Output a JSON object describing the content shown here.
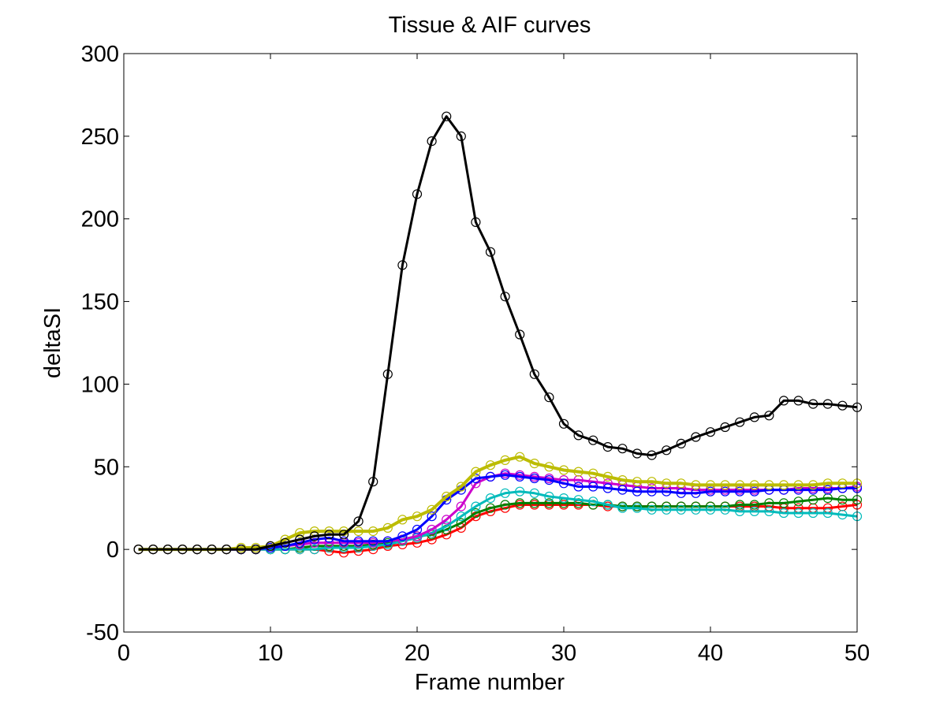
{
  "figure": {
    "background": "#ffffff"
  },
  "chart_data": {
    "type": "line",
    "title": "Tissue & AIF curves",
    "xlabel": "Frame number",
    "ylabel": "deltaSI",
    "xlim": [
      0,
      50
    ],
    "ylim": [
      -50,
      300
    ],
    "xticks": [
      0,
      10,
      20,
      30,
      40,
      50
    ],
    "yticks": [
      -50,
      0,
      50,
      100,
      150,
      200,
      250,
      300
    ],
    "grid": false,
    "legend": "none",
    "marker": "open-circle",
    "x": [
      1,
      2,
      3,
      4,
      5,
      6,
      7,
      8,
      9,
      10,
      11,
      12,
      13,
      14,
      15,
      16,
      17,
      18,
      19,
      20,
      21,
      22,
      23,
      24,
      25,
      26,
      27,
      28,
      29,
      30,
      31,
      32,
      33,
      34,
      35,
      36,
      37,
      38,
      39,
      40,
      41,
      42,
      43,
      44,
      45,
      46,
      47,
      48,
      49,
      50
    ],
    "series": [
      {
        "color": "#000000",
        "stroke_width": 3,
        "values": [
          0,
          0,
          0,
          0,
          0,
          0,
          0,
          0,
          0,
          2,
          4,
          6,
          8,
          9,
          9,
          17,
          41,
          106,
          172,
          215,
          247,
          262,
          250,
          198,
          180,
          153,
          130,
          106,
          92,
          76,
          69,
          66,
          62,
          61,
          58,
          57,
          60,
          64,
          68,
          71,
          74,
          77,
          80,
          81,
          90,
          90,
          88,
          88,
          87,
          86
        ]
      },
      {
        "color": "#bcbc00",
        "stroke_width": 4,
        "values": [
          0,
          0,
          0,
          0,
          0,
          0,
          0,
          1,
          1,
          2,
          6,
          10,
          11,
          11,
          11,
          11,
          11,
          13,
          18,
          20,
          24,
          32,
          38,
          47,
          51,
          54,
          56,
          52,
          50,
          48,
          47,
          46,
          44,
          42,
          41,
          41,
          40,
          40,
          39,
          39,
          39,
          39,
          39,
          39,
          39,
          39,
          39,
          40,
          40,
          40
        ]
      },
      {
        "color": "#0000ff",
        "stroke_width": 3,
        "values": [
          0,
          0,
          0,
          0,
          0,
          0,
          0,
          0,
          0,
          1,
          2,
          4,
          6,
          7,
          5,
          5,
          5,
          5,
          8,
          12,
          20,
          30,
          36,
          43,
          44,
          45,
          44,
          43,
          42,
          40,
          38,
          38,
          37,
          36,
          35,
          35,
          35,
          34,
          34,
          35,
          35,
          35,
          35,
          36,
          36,
          36,
          36,
          36,
          37,
          37
        ]
      },
      {
        "color": "#cc00cc",
        "stroke_width": 3,
        "values": [
          0,
          0,
          0,
          0,
          0,
          0,
          0,
          0,
          0,
          1,
          2,
          3,
          4,
          4,
          4,
          4,
          4,
          5,
          6,
          8,
          12,
          18,
          26,
          40,
          44,
          46,
          45,
          44,
          43,
          42,
          42,
          41,
          40,
          39,
          38,
          37,
          37,
          37,
          36,
          36,
          36,
          36,
          36,
          36,
          36,
          37,
          37,
          37,
          37,
          38
        ]
      },
      {
        "color": "#00bbbb",
        "stroke_width": 3,
        "values": [
          0,
          0,
          0,
          0,
          0,
          0,
          0,
          0,
          0,
          0,
          0,
          0,
          0,
          1,
          1,
          1,
          2,
          3,
          5,
          7,
          10,
          14,
          20,
          26,
          31,
          34,
          35,
          34,
          32,
          31,
          30,
          29,
          27,
          25,
          25,
          24,
          24,
          24,
          24,
          24,
          24,
          23,
          23,
          23,
          22,
          22,
          22,
          22,
          21,
          20
        ]
      },
      {
        "color": "#008000",
        "stroke_width": 3,
        "values": [
          0,
          0,
          0,
          0,
          0,
          0,
          0,
          0,
          0,
          0,
          0,
          1,
          2,
          2,
          2,
          2,
          3,
          4,
          6,
          8,
          9,
          12,
          16,
          22,
          25,
          27,
          28,
          28,
          28,
          28,
          28,
          27,
          27,
          26,
          26,
          26,
          26,
          26,
          26,
          26,
          26,
          27,
          27,
          28,
          28,
          29,
          30,
          31,
          30,
          30
        ]
      },
      {
        "color": "#ff0000",
        "stroke_width": 3,
        "values": [
          0,
          0,
          0,
          0,
          0,
          0,
          0,
          0,
          0,
          0,
          0,
          0,
          0,
          -1,
          -2,
          -1,
          0,
          2,
          3,
          4,
          6,
          9,
          13,
          20,
          23,
          25,
          27,
          27,
          27,
          27,
          27,
          27,
          26,
          26,
          26,
          26,
          26,
          26,
          26,
          26,
          26,
          26,
          26,
          26,
          25,
          25,
          25,
          25,
          26,
          27
        ]
      }
    ]
  }
}
